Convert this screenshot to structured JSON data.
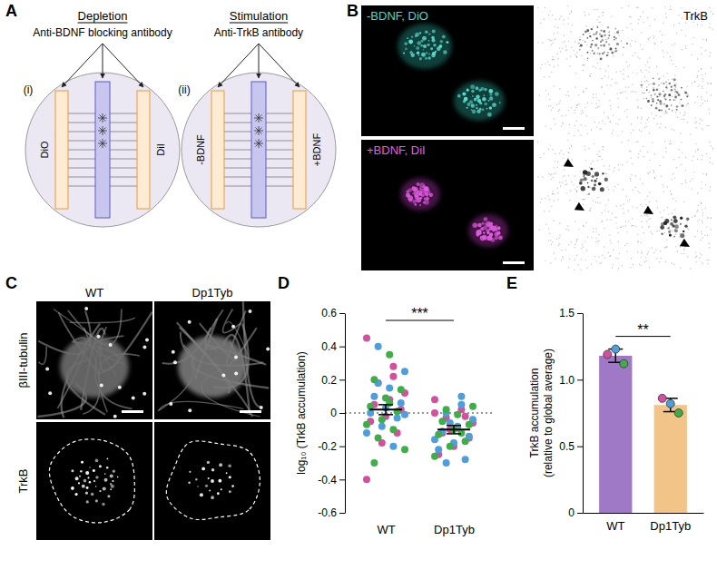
{
  "diagram": {
    "panel_label": "A",
    "panels": [
      {
        "label": "(i)",
        "title": "Depletion",
        "subtitle": "Anti-BDNF blocking antibody",
        "left": "DiO",
        "right": "DiI"
      },
      {
        "label": "(ii)",
        "title": "Stimulation",
        "subtitle": "Anti-TrkB antibody",
        "left": "-BDNF",
        "right": "+BDNF"
      }
    ]
  },
  "micrographs_b": {
    "panel_label": "B",
    "images": [
      {
        "label": "-BDNF, DiO"
      },
      {
        "label": "TrkB"
      },
      {
        "label": "+BDNF, DiI"
      }
    ]
  },
  "micrographs_c": {
    "panel_label": "C",
    "columns": [
      "WT",
      "Dp1Tyb"
    ],
    "rows": [
      "βIII-tubulin",
      "TrkB"
    ]
  },
  "chart_data": [
    {
      "panel_label": "D",
      "type": "scatter",
      "y_label": "log₁₀ (TrkB accumulation)",
      "categories": [
        "WT",
        "Dp1Tyb"
      ],
      "ylim": [
        -0.6,
        0.6
      ],
      "yticks": [
        -0.6,
        -0.4,
        -0.2,
        0,
        0.2,
        0.4,
        0.6
      ],
      "series": [
        {
          "color": "#d4509f",
          "values": [
            [
              0.45,
              0.28,
              0.18,
              0.12,
              0.08,
              0.05,
              0.02,
              -0.02,
              -0.05,
              -0.12,
              -0.18,
              -0.4,
              0.22
            ],
            [
              0.08,
              0.02,
              -0.03,
              -0.06,
              -0.09,
              -0.12,
              -0.15,
              -0.2,
              -0.25,
              -0.02,
              -0.1,
              0.0
            ]
          ]
        },
        {
          "color": "#4c9fdc",
          "values": [
            [
              0.4,
              0.25,
              0.15,
              0.1,
              0.06,
              0.03,
              0.0,
              -0.03,
              -0.08,
              -0.12,
              -0.2,
              0.18,
              -0.01
            ],
            [
              0.05,
              0.0,
              -0.04,
              -0.08,
              -0.11,
              -0.14,
              -0.18,
              -0.22,
              -0.28,
              -0.06,
              -0.16,
              0.1,
              -0.3
            ]
          ]
        },
        {
          "color": "#3fae49",
          "values": [
            [
              0.35,
              0.2,
              0.14,
              0.09,
              0.04,
              0.01,
              -0.04,
              -0.07,
              -0.1,
              -0.15,
              -0.22,
              0.06,
              -0.3
            ],
            [
              0.04,
              -0.01,
              -0.05,
              -0.07,
              -0.1,
              -0.13,
              -0.17,
              -0.2,
              -0.26,
              -0.12,
              0.02
            ]
          ]
        }
      ],
      "mean": [
        0.02,
        -0.1
      ],
      "error": [
        0.03,
        0.025
      ],
      "reference_line": 0,
      "significance": "***"
    },
    {
      "panel_label": "E",
      "type": "bar",
      "y_label": [
        "TrkB accumulation",
        "(relative to global average)"
      ],
      "categories": [
        "WT",
        "Dp1Tyb"
      ],
      "values": [
        1.18,
        0.81
      ],
      "error": [
        0.05,
        0.05
      ],
      "colors": [
        "#9f79c6",
        "#f2c488"
      ],
      "ylim": [
        0,
        1.5
      ],
      "yticks": [
        0,
        0.5,
        {
          "value": 1,
          "label": "1.0"
        },
        1.5
      ],
      "series": [
        {
          "type": "scatter",
          "color": "#d4509f",
          "values": [
            1.19,
            0.86
          ]
        },
        {
          "type": "scatter",
          "color": "#4c9fdc",
          "values": [
            1.23,
            0.82
          ]
        },
        {
          "type": "scatter",
          "color": "#3fae49",
          "values": [
            1.12,
            0.75
          ]
        }
      ],
      "significance": "**"
    }
  ]
}
